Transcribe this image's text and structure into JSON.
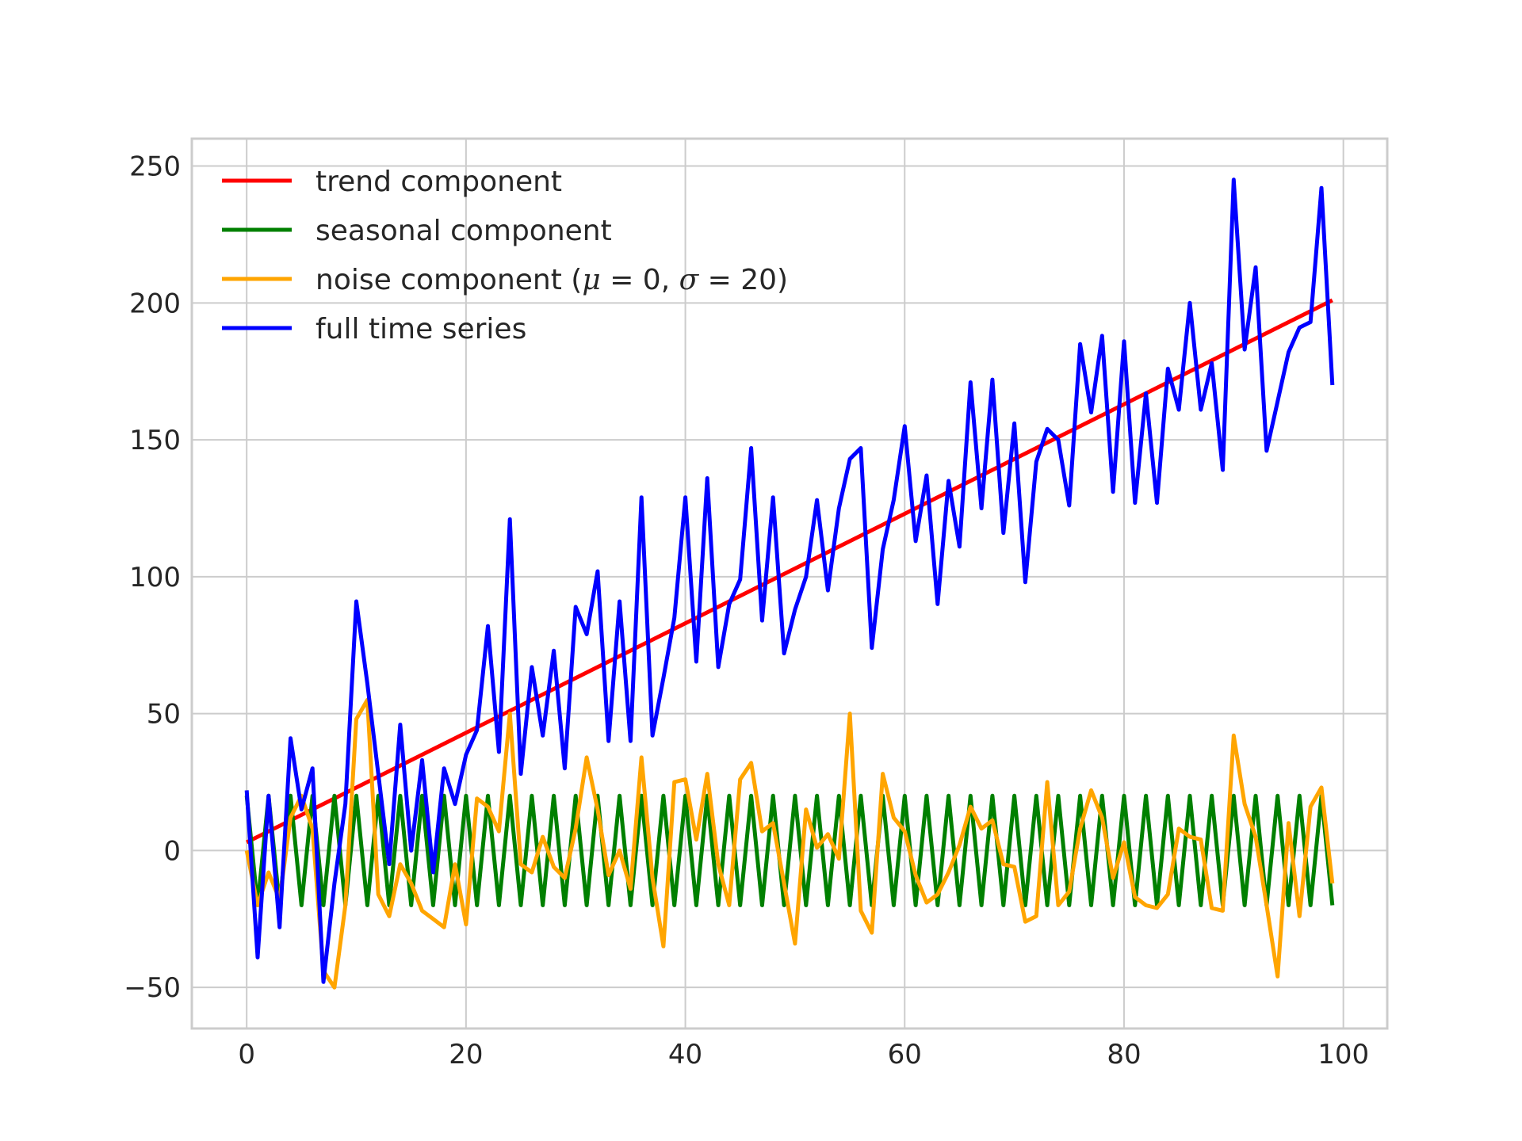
{
  "chart_data": {
    "type": "line",
    "title": "",
    "xlabel": "",
    "ylabel": "",
    "xlim": [
      -5,
      104
    ],
    "ylim": [
      -65,
      260
    ],
    "xticks": [
      0,
      20,
      40,
      60,
      80,
      100
    ],
    "yticks": [
      -50,
      0,
      50,
      100,
      150,
      200,
      250
    ],
    "xtick_labels": [
      "0",
      "20",
      "40",
      "60",
      "80",
      "100"
    ],
    "ytick_labels": [
      "−50",
      "0",
      "50",
      "100",
      "150",
      "200",
      "250"
    ],
    "grid": true,
    "legend_position": "top-left",
    "series": [
      {
        "name": "trend component",
        "color": "#ff0000",
        "kind": "linear",
        "x": [
          0,
          99
        ],
        "y": [
          3,
          201
        ]
      },
      {
        "name": "seasonal component",
        "color": "#008000",
        "kind": "alternating",
        "x_start": 0,
        "x_end": 99,
        "amplitude": 20,
        "phase_start": 1
      },
      {
        "name": "noise component ($\\mu = 0, \\sigma = 20$)",
        "name_parts": [
          "noise component (",
          "μ",
          " = 0, ",
          "σ",
          " = 20)"
        ],
        "color": "#ffa500",
        "kind": "points",
        "x_start": 0,
        "y": [
          0,
          -20,
          -8,
          -18,
          12,
          20,
          8,
          -44,
          -50,
          -20,
          48,
          55,
          -16,
          -24,
          -5,
          -12,
          -22,
          -25,
          -28,
          -5,
          -27,
          19,
          16,
          7,
          50,
          -5,
          -8,
          5,
          -6,
          -10,
          8,
          34,
          15,
          -9,
          0,
          -14,
          34,
          -10,
          -35,
          25,
          26,
          4,
          28,
          -5,
          -20,
          26,
          32,
          7,
          10,
          -12,
          -34,
          15,
          1,
          6,
          -3,
          50,
          -22,
          -30,
          28,
          12,
          7,
          -9,
          -19,
          -16,
          -8,
          2,
          16,
          8,
          11,
          -5,
          -6,
          -26,
          -24,
          25,
          -20,
          -15,
          8,
          22,
          12,
          -10,
          3,
          -17,
          -20,
          -21,
          -16,
          8,
          5,
          4,
          -21,
          -22,
          42,
          17,
          5,
          -20,
          -46,
          10,
          -24,
          16,
          23,
          -12
        ]
      },
      {
        "name": "full time series",
        "color": "#0000ff",
        "kind": "points",
        "x_start": 0,
        "y": [
          22,
          -39,
          20,
          -28,
          41,
          15,
          30,
          -48,
          -12,
          17,
          91,
          61,
          28,
          -5,
          46,
          0,
          33,
          -8,
          30,
          17,
          35,
          44,
          82,
          36,
          121,
          28,
          67,
          42,
          73,
          30,
          89,
          79,
          102,
          40,
          91,
          40,
          129,
          42,
          63,
          85,
          129,
          69,
          136,
          67,
          90,
          99,
          147,
          84,
          129,
          72,
          88,
          100,
          128,
          95,
          125,
          143,
          147,
          74,
          110,
          128,
          155,
          113,
          137,
          90,
          135,
          111,
          171,
          125,
          172,
          116,
          156,
          98,
          142,
          154,
          150,
          126,
          185,
          160,
          188,
          131,
          186,
          127,
          167,
          127,
          176,
          161,
          200,
          161,
          178,
          139,
          245,
          183,
          213,
          146,
          164,
          182,
          191,
          193,
          242,
          170
        ]
      }
    ]
  }
}
